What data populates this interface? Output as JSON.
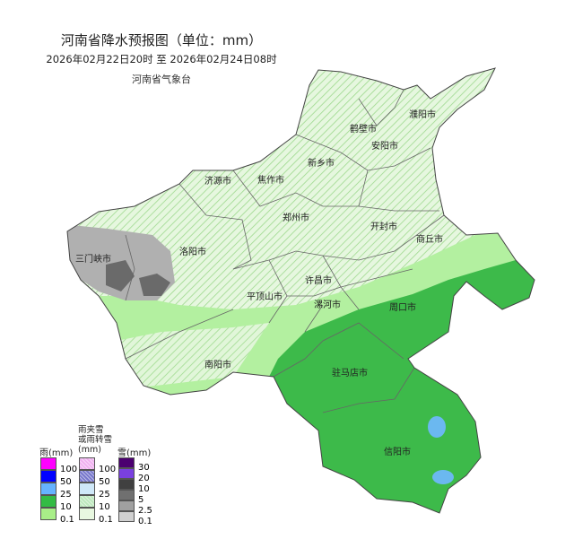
{
  "header": {
    "title": "河南省降水预报图（单位：mm）",
    "period": "2026年02月22日20时  至  2026年02月24日08时",
    "issuer": "河南省气象台"
  },
  "map": {
    "cities": [
      {
        "name": "濮阳市"
      },
      {
        "name": "鹤壁市"
      },
      {
        "name": "安阳市"
      },
      {
        "name": "新乡市"
      },
      {
        "name": "济源市"
      },
      {
        "name": "焦作市"
      },
      {
        "name": "郑州市"
      },
      {
        "name": "开封市"
      },
      {
        "name": "商丘市"
      },
      {
        "name": "三门峡市"
      },
      {
        "name": "洛阳市"
      },
      {
        "name": "许昌市"
      },
      {
        "name": "平顶山市"
      },
      {
        "name": "漯河市"
      },
      {
        "name": "周口市"
      },
      {
        "name": "南阳市"
      },
      {
        "name": "驻马店市"
      },
      {
        "name": "信阳市"
      }
    ],
    "colors": {
      "rain_0_1": "#b3f0a0",
      "rain_10": "#3dba4a",
      "rain_25": "#6bb8f0",
      "hatch_light": "#dff5d8",
      "snow_light": "#b0b0b0",
      "snow_mid": "#6a6a6a"
    }
  },
  "legend": {
    "rain": {
      "title": "雨(mm)",
      "labels": [
        "100",
        "50",
        "25",
        "10",
        "0.1"
      ],
      "colors": [
        "#ff00ff",
        "#0000ff",
        "#66b3ff",
        "#33bb44",
        "#a8ee88"
      ]
    },
    "mix": {
      "title_line1": "雨夹雪",
      "title_line2": "或雨转雪",
      "title_line3": "(mm)",
      "labels": [
        "100",
        "50",
        "25",
        "10",
        "0.1"
      ],
      "colors": [
        "#f0b0f0",
        "#7777cc",
        "#cfe8f8",
        "#bde8bd",
        "#e8f8e0"
      ]
    },
    "snow": {
      "title": "雪(mm)",
      "labels": [
        "30",
        "20",
        "10",
        "5",
        "2.5",
        "0.1"
      ],
      "colors": [
        "#4b0070",
        "#7a40e0",
        "#404040",
        "#707070",
        "#a0a0a0",
        "#d0d0d0"
      ]
    }
  }
}
